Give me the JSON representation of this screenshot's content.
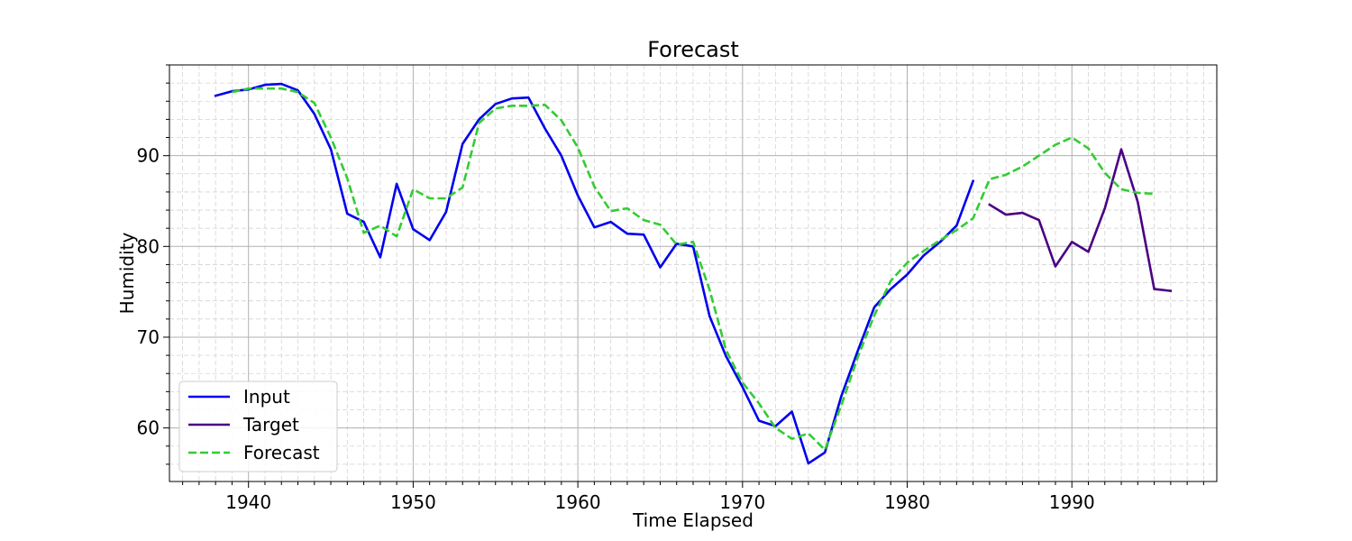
{
  "chart_data": {
    "type": "line",
    "title": "Forecast",
    "xlabel": "Time Elapsed",
    "ylabel": "Humidity",
    "xlim": [
      1935.2,
      1998.8
    ],
    "ylim": [
      54.1,
      100.0
    ],
    "x_ticks": [
      1940,
      1950,
      1960,
      1970,
      1980,
      1990
    ],
    "y_ticks": [
      60,
      70,
      80,
      90
    ],
    "x_minor_step": 1,
    "y_minor_step": 2,
    "grid": true,
    "legend_position": "lower left",
    "series": [
      {
        "name": "Input",
        "color": "#0000ee",
        "style": "solid",
        "x": [
          1938,
          1939,
          1940,
          1941,
          1942,
          1943,
          1944,
          1945,
          1946,
          1947,
          1948,
          1949,
          1950,
          1951,
          1952,
          1953,
          1954,
          1955,
          1956,
          1957,
          1958,
          1959,
          1960,
          1961,
          1962,
          1963,
          1964,
          1965,
          1966,
          1967,
          1968,
          1969,
          1970,
          1971,
          1972,
          1973,
          1974,
          1975,
          1976,
          1977,
          1978,
          1979,
          1980,
          1981,
          1982,
          1983,
          1984
        ],
        "y": [
          96.6,
          97.1,
          97.3,
          97.8,
          97.9,
          97.2,
          94.6,
          90.7,
          83.6,
          82.7,
          78.8,
          86.9,
          81.9,
          80.7,
          83.8,
          91.3,
          94.0,
          95.7,
          96.3,
          96.4,
          93.0,
          90.0,
          85.6,
          82.1,
          82.7,
          81.4,
          81.3,
          77.7,
          80.3,
          80.0,
          72.3,
          67.9,
          64.5,
          60.8,
          60.2,
          61.8,
          56.1,
          57.3,
          63.5,
          68.5,
          73.3,
          75.3,
          76.9,
          79.0,
          80.5,
          82.3,
          87.2
        ]
      },
      {
        "name": "Target",
        "color": "#4b0082",
        "style": "solid",
        "x": [
          1985,
          1986,
          1987,
          1988,
          1989,
          1990,
          1991,
          1992,
          1993,
          1994,
          1995,
          1996
        ],
        "y": [
          84.6,
          83.5,
          83.7,
          82.9,
          77.8,
          80.5,
          79.4,
          84.2,
          90.7,
          84.9,
          75.3,
          75.1
        ]
      },
      {
        "name": "Forecast",
        "color": "#33cc33",
        "style": "dashed",
        "x": [
          1939,
          1940,
          1941,
          1942,
          1943,
          1944,
          1945,
          1946,
          1947,
          1948,
          1949,
          1950,
          1951,
          1952,
          1953,
          1954,
          1955,
          1956,
          1957,
          1958,
          1959,
          1960,
          1961,
          1962,
          1963,
          1964,
          1965,
          1966,
          1967,
          1968,
          1969,
          1970,
          1971,
          1972,
          1973,
          1974,
          1975,
          1976,
          1977,
          1978,
          1979,
          1980,
          1981,
          1982,
          1983,
          1984,
          1985,
          1986,
          1987,
          1988,
          1989,
          1990,
          1991,
          1992,
          1993,
          1994,
          1995
        ],
        "y": [
          97.0,
          97.4,
          97.4,
          97.4,
          97.0,
          95.8,
          92.0,
          87.5,
          81.5,
          82.3,
          81.1,
          86.3,
          85.3,
          85.3,
          86.5,
          93.6,
          95.2,
          95.5,
          95.5,
          95.6,
          93.9,
          90.9,
          86.6,
          83.9,
          84.2,
          82.9,
          82.4,
          80.2,
          80.5,
          75.2,
          68.6,
          65.0,
          62.7,
          60.0,
          58.8,
          59.4,
          57.6,
          62.5,
          67.8,
          72.4,
          76.2,
          78.2,
          79.5,
          80.7,
          81.8,
          83.1,
          87.4,
          87.9,
          88.8,
          90.0,
          91.2,
          92.0,
          90.8,
          88.1,
          86.3,
          85.9,
          85.8
        ]
      }
    ]
  }
}
